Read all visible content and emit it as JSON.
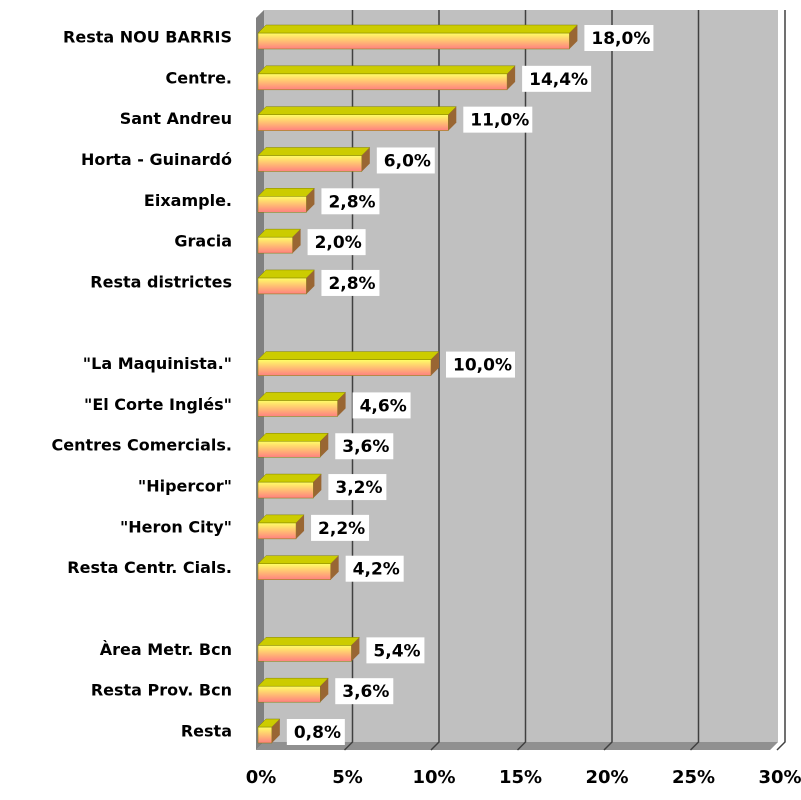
{
  "chart_data": {
    "type": "bar",
    "orientation": "horizontal",
    "categories": [
      "Resta NOU BARRIS",
      "Centre.",
      "Sant Andreu",
      "Horta - Guinardó",
      "Eixample.",
      "Gracia",
      "Resta districtes",
      null,
      "\"La Maquinista.\"",
      "\"El Corte Inglés\"",
      "Centres Comercials.",
      "\"Hipercor\"",
      "\"Heron City\"",
      "Resta Centr. Cials.",
      null,
      "Àrea Metr. Bcn",
      "Resta  Prov. Bcn",
      "Resta"
    ],
    "values": [
      18.0,
      14.4,
      11.0,
      6.0,
      2.8,
      2.0,
      2.8,
      null,
      10.0,
      4.6,
      3.6,
      3.2,
      2.2,
      4.2,
      null,
      5.4,
      3.6,
      0.8
    ],
    "value_labels": [
      "18,0%",
      "14,4%",
      "11,0%",
      "6,0%",
      "2,8%",
      "2,0%",
      "2,8%",
      null,
      "10,0%",
      "4,6%",
      "3,6%",
      "3,2%",
      "2,2%",
      "4,2%",
      null,
      "5,4%",
      "3,6%",
      "0,8%"
    ],
    "color": "#ffff66",
    "xlim": [
      0,
      30
    ],
    "xticks": [
      {
        "value": 0,
        "label": "0%"
      },
      {
        "value": 5,
        "label": "5%"
      },
      {
        "value": 10,
        "label": "10%"
      },
      {
        "value": 15,
        "label": "15%"
      },
      {
        "value": 20,
        "label": "20%"
      },
      {
        "value": 25,
        "label": "25%"
      },
      {
        "value": 30,
        "label": "30%"
      }
    ],
    "grid": true
  }
}
